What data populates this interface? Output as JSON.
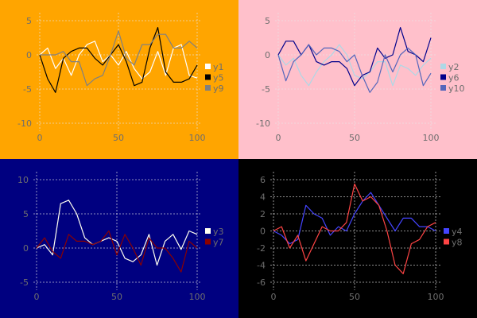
{
  "chart_data": [
    {
      "type": "line",
      "background": "#ffa500",
      "x": [
        0,
        5,
        10,
        15,
        20,
        25,
        30,
        35,
        40,
        45,
        50,
        55,
        60,
        65,
        70,
        75,
        80,
        85,
        90,
        95,
        100
      ],
      "xticks": [
        0,
        50,
        100
      ],
      "yticks": [
        5,
        0,
        -5,
        -10
      ],
      "xlim": [
        0,
        100
      ],
      "ylim": [
        -11,
        6
      ],
      "grid": true,
      "legend": "right",
      "series": [
        {
          "name": "y1",
          "color": "#ffffff",
          "values": [
            0,
            1,
            -2,
            -0.5,
            -3,
            0,
            1.5,
            2,
            -1,
            0,
            -1.5,
            0.5,
            -2,
            -3.5,
            -2.5,
            0.5,
            -3,
            1,
            1.5,
            -3,
            -3.4
          ]
        },
        {
          "name": "y5",
          "color": "#000000",
          "values": [
            0,
            -3.5,
            -5.5,
            -0.5,
            0.5,
            1,
            1,
            -0.5,
            -1.5,
            0,
            1.5,
            -1,
            -4.5,
            -4,
            1,
            4,
            -2.5,
            -4,
            -4,
            -3.5,
            -1.5
          ]
        },
        {
          "name": "y9",
          "color": "#808080",
          "values": [
            0,
            0,
            0,
            0.5,
            -1,
            -1,
            -4.5,
            -3.5,
            -3,
            0,
            3.5,
            -0.5,
            -1.5,
            1.5,
            1.5,
            3,
            3,
            1,
            1,
            2,
            1
          ]
        }
      ]
    },
    {
      "type": "line",
      "background": "#ffc0cb",
      "x": [
        0,
        5,
        10,
        15,
        20,
        25,
        30,
        35,
        40,
        45,
        50,
        55,
        60,
        65,
        70,
        75,
        80,
        85,
        90,
        95,
        100
      ],
      "xticks": [
        0,
        50,
        100
      ],
      "yticks": [
        5,
        0,
        -5,
        -10
      ],
      "xlim": [
        0,
        100
      ],
      "ylim": [
        -11,
        6
      ],
      "grid": true,
      "legend": "right",
      "series": [
        {
          "name": "y2",
          "color": "#add8e6",
          "values": [
            0,
            -1.5,
            -0.5,
            -3,
            -4.5,
            -2.5,
            -1,
            0,
            1.5,
            0,
            -3,
            -3.5,
            -2.5,
            -1,
            -1,
            -4.5,
            -1.5,
            -2,
            -3,
            -1.5,
            -0.5
          ]
        },
        {
          "name": "y6",
          "color": "#00008b",
          "values": [
            0,
            2,
            2,
            0,
            1.5,
            -1,
            -1.5,
            -1,
            -1,
            -2,
            -4.5,
            -3,
            -2.5,
            1,
            -0.5,
            0,
            4,
            0.5,
            0,
            -1,
            2.5
          ]
        },
        {
          "name": "y10",
          "color": "#5566bb",
          "values": [
            0,
            -3.8,
            -1,
            0,
            1.5,
            0,
            1,
            1,
            0.5,
            -1,
            0,
            -3,
            -5.5,
            -4,
            0,
            -2.5,
            0,
            1,
            0,
            -4.5,
            -2.7
          ]
        }
      ]
    },
    {
      "type": "line",
      "background": "#000080",
      "x": [
        0,
        5,
        10,
        15,
        20,
        25,
        30,
        35,
        40,
        45,
        50,
        55,
        60,
        65,
        70,
        75,
        80,
        85,
        90,
        95,
        100
      ],
      "xticks": [
        0,
        50,
        100
      ],
      "yticks": [
        10,
        5,
        0,
        -5
      ],
      "xlim": [
        0,
        100
      ],
      "ylim": [
        -6,
        11
      ],
      "grid": true,
      "legend": "right",
      "series": [
        {
          "name": "y3",
          "color": "#fffff0",
          "values": [
            0,
            0.5,
            -1,
            6.5,
            7,
            5,
            1.5,
            0.5,
            1,
            1.5,
            1,
            -1.5,
            -2,
            -1,
            2,
            -2.5,
            1,
            2,
            -0.2,
            2.5,
            2
          ]
        },
        {
          "name": "y7",
          "color": "#8b0000",
          "values": [
            0,
            1.5,
            -0.5,
            -1.5,
            2,
            1,
            1,
            0.5,
            1,
            2.5,
            -1,
            2,
            0,
            -2.5,
            1.5,
            0,
            0,
            -1.5,
            -3.5,
            1,
            0
          ]
        }
      ]
    },
    {
      "type": "line",
      "background": "#000000",
      "x": [
        0,
        5,
        10,
        15,
        20,
        25,
        30,
        35,
        40,
        45,
        50,
        55,
        60,
        65,
        70,
        75,
        80,
        85,
        90,
        95,
        100
      ],
      "xticks": [
        0,
        50,
        100
      ],
      "yticks": [
        6,
        4,
        2,
        0,
        -2,
        -4,
        -6
      ],
      "xlim": [
        0,
        100
      ],
      "ylim": [
        -7,
        7
      ],
      "grid": true,
      "legend": "right",
      "series": [
        {
          "name": "y4",
          "color": "#4444ff",
          "values": [
            0,
            -0.5,
            -1.5,
            -1,
            3,
            2,
            1.5,
            -0.5,
            0.5,
            0,
            2,
            3.5,
            4.5,
            3,
            1.5,
            0,
            1.5,
            1.5,
            0.5,
            0.5,
            0
          ]
        },
        {
          "name": "y8",
          "color": "#ff4444",
          "values": [
            0,
            0.5,
            -2,
            -0.5,
            -3.5,
            -1.5,
            0.5,
            0,
            0,
            1,
            5.5,
            3.5,
            4,
            3,
            0,
            -4,
            -5,
            -1.5,
            -1,
            0.5,
            1
          ]
        }
      ]
    }
  ]
}
